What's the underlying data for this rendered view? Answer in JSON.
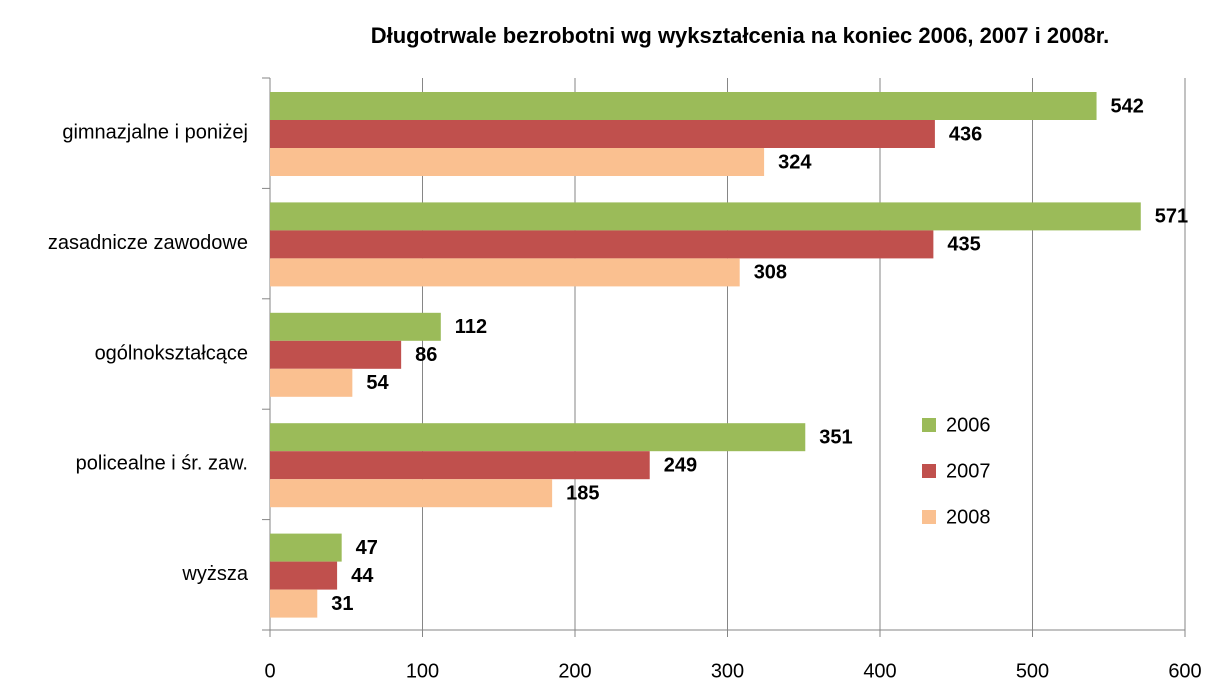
{
  "chart_data": {
    "type": "bar",
    "orientation": "horizontal",
    "title": "Długotrwale bezrobotni wg wykształcenia na koniec 2006, 2007 i 2008r.",
    "categories": [
      "gimnazjalne i poniżej",
      "zasadnicze zawodowe",
      "ogólnokształcące",
      "policealne i śr. zaw.",
      "wyższa"
    ],
    "series": [
      {
        "name": "2006",
        "color": "#9bbb59",
        "values": [
          542,
          571,
          112,
          351,
          47
        ]
      },
      {
        "name": "2007",
        "color": "#c0504d",
        "values": [
          436,
          435,
          86,
          249,
          44
        ]
      },
      {
        "name": "2008",
        "color": "#fac090",
        "values": [
          324,
          308,
          54,
          185,
          31
        ]
      }
    ],
    "xlim": [
      0,
      600
    ],
    "xticks": [
      0,
      100,
      200,
      300,
      400,
      500,
      600
    ],
    "grid": true,
    "legend": "right"
  }
}
